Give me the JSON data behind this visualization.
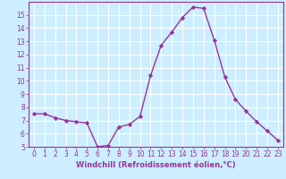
{
  "x": [
    0,
    1,
    2,
    3,
    4,
    5,
    6,
    7,
    8,
    9,
    10,
    11,
    12,
    13,
    14,
    15,
    16,
    17,
    18,
    19,
    20,
    21,
    22,
    23
  ],
  "y": [
    7.5,
    7.5,
    7.2,
    7.0,
    6.9,
    6.8,
    5.0,
    5.1,
    6.5,
    6.7,
    7.3,
    10.4,
    12.7,
    13.7,
    14.8,
    15.6,
    15.5,
    13.1,
    10.3,
    8.6,
    7.7,
    6.9,
    6.2,
    5.5
  ],
  "line_color": "#993399",
  "marker": "D",
  "markersize": 2.2,
  "linewidth": 1.0,
  "bg_color": "#cceeff",
  "grid_color": "#ffffff",
  "xlabel": "Windchill (Refroidissement éolien,°C)",
  "ylim": [
    5,
    16
  ],
  "yticks": [
    5,
    6,
    7,
    8,
    9,
    10,
    11,
    12,
    13,
    14,
    15
  ],
  "xticks": [
    0,
    1,
    2,
    3,
    4,
    5,
    6,
    7,
    8,
    9,
    10,
    11,
    12,
    13,
    14,
    15,
    16,
    17,
    18,
    19,
    20,
    21,
    22,
    23
  ],
  "tick_color": "#993399",
  "tick_fontsize": 5.5,
  "xlabel_fontsize": 6.0
}
